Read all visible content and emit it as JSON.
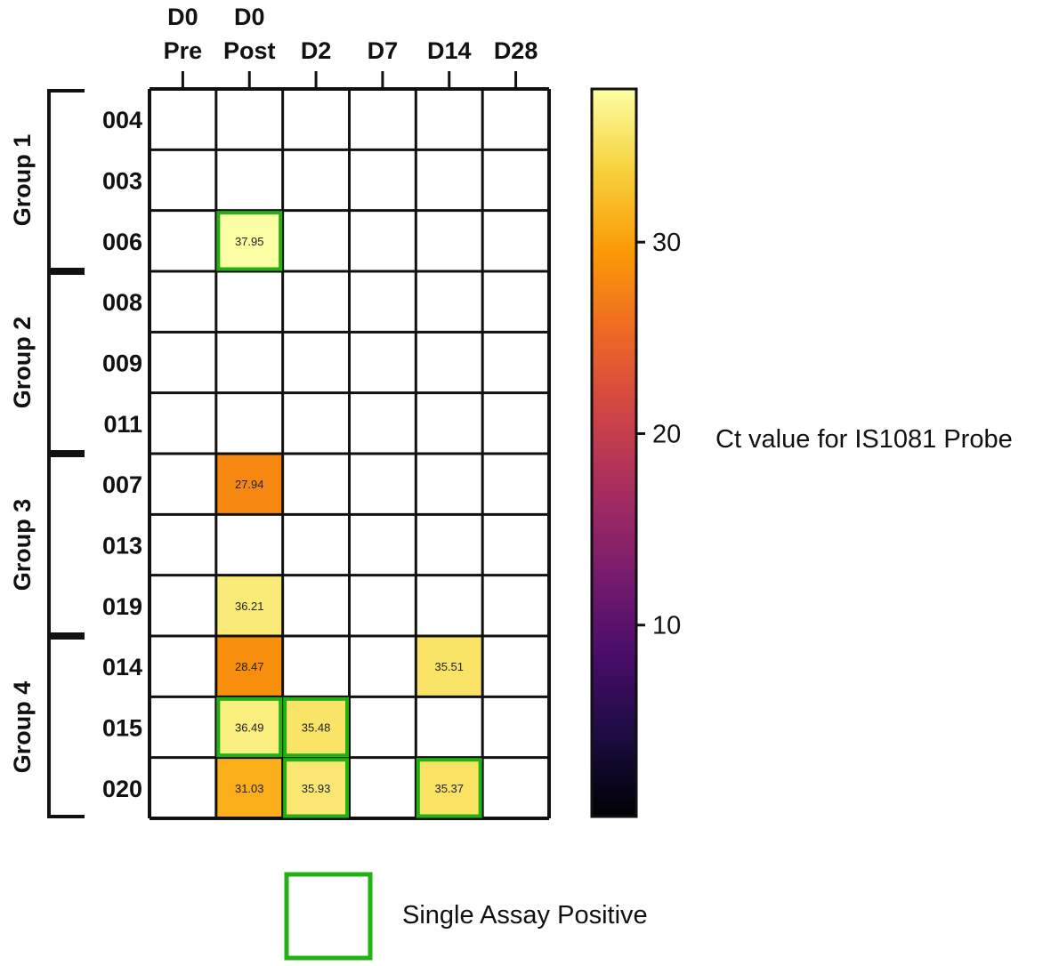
{
  "chart_data": {
    "type": "heatmap",
    "columns": [
      {
        "line1": "D0",
        "line2": "Pre"
      },
      {
        "line1": "D0",
        "line2": "Post"
      },
      {
        "line1": "",
        "line2": "D2"
      },
      {
        "line1": "",
        "line2": "D7"
      },
      {
        "line1": "",
        "line2": "D14"
      },
      {
        "line1": "",
        "line2": "D28"
      }
    ],
    "rows": [
      "004",
      "003",
      "006",
      "008",
      "009",
      "011",
      "007",
      "013",
      "019",
      "014",
      "015",
      "020"
    ],
    "groups": [
      {
        "label": "Group 1",
        "start_row": 0,
        "end_row": 2
      },
      {
        "label": "Group 2",
        "start_row": 3,
        "end_row": 5
      },
      {
        "label": "Group 3",
        "start_row": 6,
        "end_row": 8
      },
      {
        "label": "Group 4",
        "start_row": 9,
        "end_row": 11
      }
    ],
    "cells": [
      {
        "row": "006",
        "col": "D0 Post",
        "value": 37.95,
        "label": "37.95",
        "single_assay_positive": true
      },
      {
        "row": "007",
        "col": "D0 Post",
        "value": 27.94,
        "label": "27.94",
        "single_assay_positive": false
      },
      {
        "row": "019",
        "col": "D0 Post",
        "value": 36.21,
        "label": "36.21",
        "single_assay_positive": false
      },
      {
        "row": "014",
        "col": "D0 Post",
        "value": 28.47,
        "label": "28.47",
        "single_assay_positive": false
      },
      {
        "row": "014",
        "col": "D14",
        "value": 35.51,
        "label": "35.51",
        "single_assay_positive": false
      },
      {
        "row": "015",
        "col": "D0 Post",
        "value": 36.49,
        "label": "36.49",
        "single_assay_positive": true
      },
      {
        "row": "015",
        "col": "D2",
        "value": 35.48,
        "label": "35.48",
        "single_assay_positive": true
      },
      {
        "row": "020",
        "col": "D0 Post",
        "value": 31.03,
        "label": "31.03",
        "single_assay_positive": false
      },
      {
        "row": "020",
        "col": "D2",
        "value": 35.93,
        "label": "35.93",
        "single_assay_positive": true
      },
      {
        "row": "020",
        "col": "D14",
        "value": 35.37,
        "label": "35.37",
        "single_assay_positive": true
      }
    ],
    "colorbar": {
      "label": "Ct value for IS1081 Probe",
      "range": [
        0,
        38
      ],
      "ticks": [
        10,
        20,
        30
      ],
      "colormap": "inferno",
      "stops": [
        "#000004",
        "#1b0c41",
        "#4a0c6b",
        "#781c6d",
        "#a52c60",
        "#cf4446",
        "#ed6925",
        "#fb9b06",
        "#f7d13d",
        "#fcffa4"
      ]
    },
    "legend": {
      "label": "Single Assay Positive",
      "color": "#22b014"
    },
    "grid": true
  }
}
